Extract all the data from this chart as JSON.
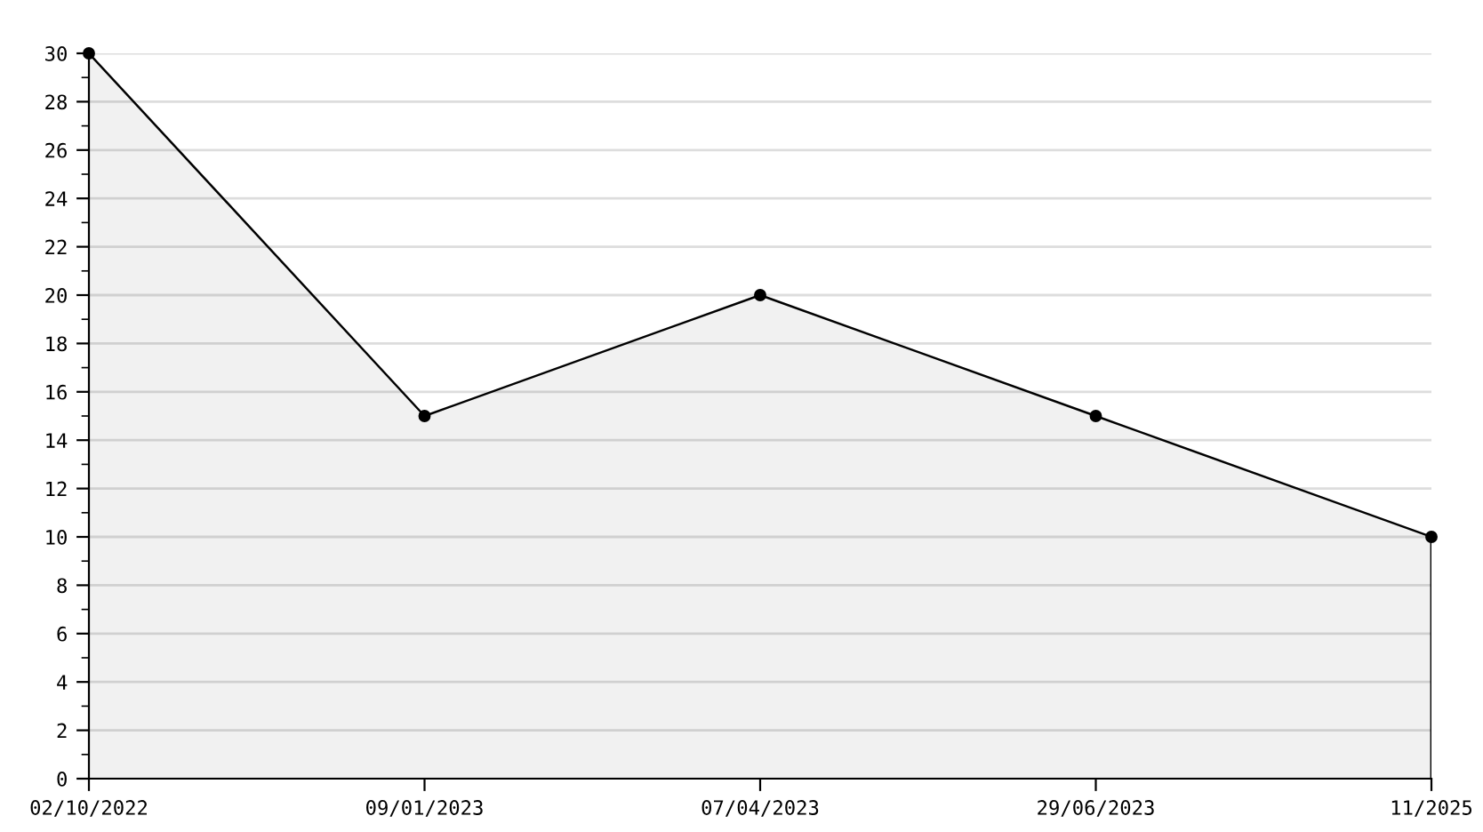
{
  "chart_data": {
    "type": "area",
    "categories": [
      "02/10/2022",
      "09/01/2023",
      "07/04/2023",
      "29/06/2023",
      "11/2025"
    ],
    "series": [
      {
        "color": "#000000",
        "values": [
          30,
          15,
          20,
          15,
          10
        ]
      }
    ],
    "ylim": [
      0,
      30
    ],
    "yticks": [
      0,
      {
        "value": 1,
        "label": null
      },
      2,
      {
        "value": 3,
        "label": null
      },
      4,
      {
        "value": 5,
        "label": null
      },
      6,
      {
        "value": 7,
        "label": null
      },
      8,
      {
        "value": 9,
        "label": null
      },
      10,
      {
        "value": 11,
        "label": null
      },
      12,
      {
        "value": 13,
        "label": null
      },
      14,
      {
        "value": 15,
        "label": null
      },
      16,
      {
        "value": 17,
        "label": null
      },
      18,
      {
        "value": 19,
        "label": null
      },
      20,
      {
        "value": 21,
        "label": null
      },
      22,
      {
        "value": 23,
        "label": null
      },
      24,
      {
        "value": 25,
        "label": null
      },
      26,
      {
        "value": 27,
        "label": null
      },
      28,
      {
        "value": 29,
        "label": null
      },
      30
    ],
    "grid": "y",
    "marker": "circle",
    "line_style": "solid",
    "legend": false
  }
}
